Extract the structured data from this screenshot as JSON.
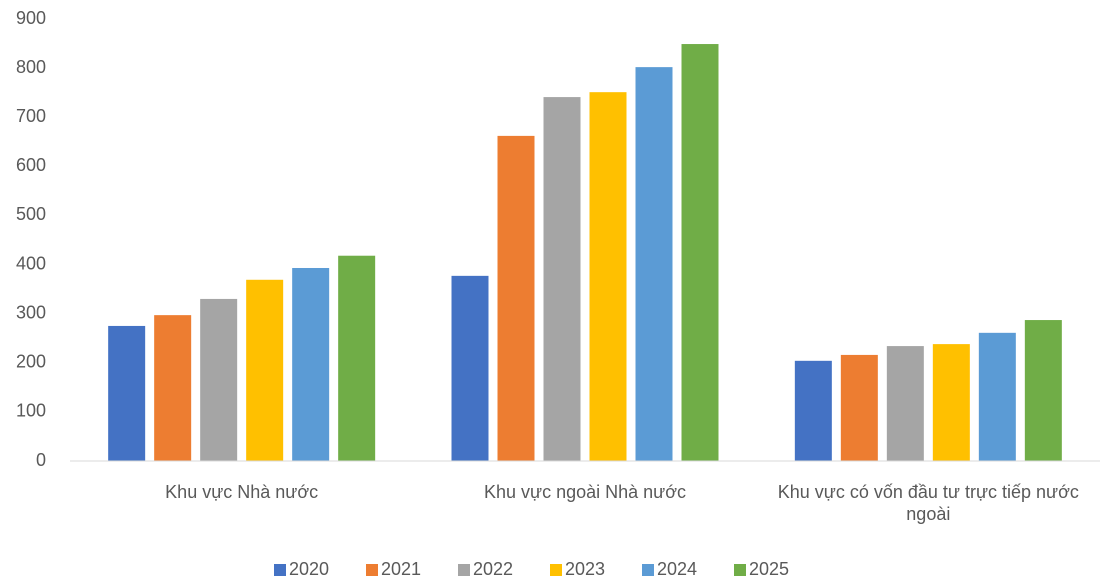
{
  "chart_data": {
    "type": "bar",
    "categories": [
      "Khu vực Nhà nước",
      "Khu vực ngoài Nhà nước",
      "Khu vực có vốn đầu tư trực tiếp nước ngoài"
    ],
    "series": [
      {
        "name": "2020",
        "color": "#4472c4",
        "values": [
          275,
          377,
          204
        ]
      },
      {
        "name": "2021",
        "color": "#ed7d31",
        "values": [
          297,
          662,
          216
        ]
      },
      {
        "name": "2022",
        "color": "#a5a5a5",
        "values": [
          330,
          741,
          234
        ]
      },
      {
        "name": "2023",
        "color": "#ffc000",
        "values": [
          369,
          751,
          238
        ]
      },
      {
        "name": "2024",
        "color": "#5b9bd5",
        "values": [
          393,
          802,
          261
        ]
      },
      {
        "name": "2025",
        "color": "#70ad47",
        "values": [
          418,
          849,
          287
        ]
      }
    ],
    "ylim": [
      0,
      900
    ],
    "yticks": [
      0,
      100,
      200,
      300,
      400,
      500,
      600,
      700,
      800,
      900
    ],
    "grid": false,
    "legend": "bottom"
  }
}
